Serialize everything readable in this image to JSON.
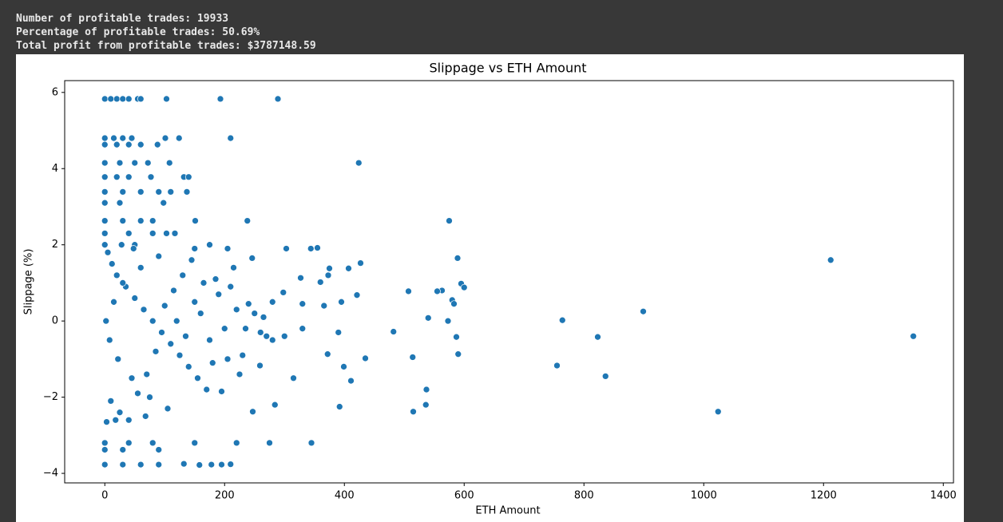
{
  "output_lines": [
    "Number of profitable trades: 19933",
    "Percentage of profitable trades: 50.69%",
    "Total profit from profitable trades: $3787148.59"
  ],
  "chart_data": {
    "type": "scatter",
    "title": "Slippage vs ETH Amount",
    "x_label": "ETH Amount",
    "y_label": "Slippage (%)",
    "xlim": [
      -67,
      1417
    ],
    "ylim": [
      -4.25,
      6.31
    ],
    "xticks": [
      0,
      200,
      400,
      600,
      800,
      1000,
      1200,
      1400
    ],
    "yticks": [
      {
        "value": -4,
        "label": "−4"
      },
      {
        "value": -2,
        "label": "−2"
      },
      0,
      2,
      4,
      6
    ],
    "grid": false,
    "series": [
      {
        "color": "#1f77b4",
        "x": [
          103,
          193,
          289,
          0,
          10,
          20,
          30,
          40,
          55,
          60,
          101,
          124,
          210,
          0,
          15,
          30,
          45,
          0,
          20,
          40,
          60,
          88,
          424,
          0,
          25,
          50,
          72,
          108,
          0,
          20,
          40,
          77,
          132,
          140,
          0,
          30,
          60,
          90,
          110,
          137,
          0,
          25,
          98,
          0,
          30,
          60,
          80,
          151,
          238,
          575,
          0,
          40,
          80,
          103,
          117,
          0,
          50,
          175,
          150,
          205,
          303,
          344,
          355,
          1212,
          589,
          427,
          246,
          375,
          407,
          327,
          373,
          360,
          595,
          600,
          563,
          555,
          507,
          421,
          580,
          583,
          298,
          280,
          330,
          395,
          366,
          540,
          573,
          764,
          899,
          823,
          1350,
          587,
          482,
          390,
          330,
          300,
          280,
          435,
          514,
          590,
          372,
          399,
          259,
          755,
          836,
          315,
          411,
          537,
          195,
          392,
          284,
          515,
          247,
          1024,
          536,
          220,
          275,
          345,
          150,
          0,
          40,
          80,
          0,
          30,
          90,
          0,
          30,
          60,
          90,
          132,
          158,
          178,
          195,
          210,
          5,
          12,
          20,
          35,
          50,
          65,
          80,
          95,
          110,
          125,
          140,
          155,
          170,
          185,
          200,
          10,
          25,
          40,
          55,
          70,
          85,
          100,
          115,
          130,
          145,
          160,
          175,
          190,
          205,
          220,
          235,
          250,
          260,
          2,
          8,
          15,
          22,
          30,
          45,
          60,
          75,
          90,
          105,
          120,
          135,
          150,
          165,
          180,
          3,
          18,
          28,
          48,
          68,
          230,
          240,
          265,
          270,
          210,
          215,
          225
        ],
        "y": [
          5.83,
          5.83,
          5.83,
          5.83,
          5.83,
          5.83,
          5.83,
          5.83,
          5.83,
          5.83,
          4.8,
          4.8,
          4.8,
          4.8,
          4.8,
          4.8,
          4.8,
          4.63,
          4.63,
          4.63,
          4.63,
          4.63,
          4.15,
          4.15,
          4.15,
          4.15,
          4.15,
          4.15,
          3.78,
          3.78,
          3.78,
          3.78,
          3.78,
          3.78,
          3.39,
          3.39,
          3.39,
          3.39,
          3.39,
          3.39,
          3.1,
          3.1,
          3.1,
          2.63,
          2.63,
          2.63,
          2.63,
          2.63,
          2.63,
          2.63,
          2.3,
          2.3,
          2.3,
          2.3,
          2.3,
          2.0,
          2.0,
          2.0,
          1.9,
          1.9,
          1.9,
          1.9,
          1.92,
          1.6,
          1.65,
          1.52,
          1.65,
          1.38,
          1.38,
          1.13,
          1.2,
          1.02,
          0.98,
          0.88,
          0.8,
          0.78,
          0.78,
          0.68,
          0.55,
          0.45,
          0.75,
          0.5,
          0.45,
          0.5,
          0.4,
          0.08,
          0.0,
          0.02,
          0.25,
          -0.42,
          -0.4,
          -0.42,
          -0.28,
          -0.3,
          -0.2,
          -0.4,
          -0.5,
          -0.98,
          -0.95,
          -0.87,
          -0.87,
          -1.2,
          -1.17,
          -1.17,
          -1.45,
          -1.5,
          -1.57,
          -1.8,
          -1.85,
          -2.25,
          -2.2,
          -2.38,
          -2.38,
          -2.38,
          -2.2,
          -3.2,
          -3.2,
          -3.2,
          -3.2,
          -3.2,
          -3.2,
          -3.2,
          -3.38,
          -3.38,
          -3.38,
          -3.77,
          -3.77,
          -3.77,
          -3.77,
          -3.75,
          -3.78,
          -3.77,
          -3.77,
          -3.76,
          1.8,
          1.5,
          1.2,
          0.9,
          0.6,
          0.3,
          0,
          -0.3,
          -0.6,
          -0.9,
          -1.2,
          -1.5,
          -1.8,
          1.1,
          -0.2,
          -2.1,
          -2.4,
          -2.6,
          -1.9,
          -1.4,
          -0.8,
          0.4,
          0.8,
          1.2,
          1.6,
          0.2,
          -0.5,
          0.7,
          -1,
          0.3,
          -0.2,
          0.2,
          -0.3,
          0,
          -0.5,
          0.5,
          -1,
          1,
          -1.5,
          1.4,
          -2,
          1.7,
          -2.3,
          0,
          -0.4,
          0.5,
          1.0,
          -1.1,
          -2.65,
          -2.6,
          2.0,
          1.9,
          -2.5,
          -0.9,
          0.45,
          0.1,
          -0.4,
          0.9,
          1.4,
          -1.4
        ]
      }
    ]
  }
}
